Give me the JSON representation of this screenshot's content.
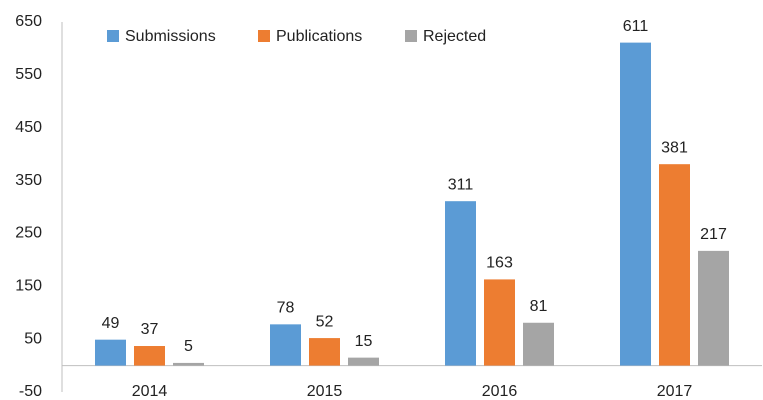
{
  "chart_data": {
    "type": "bar",
    "categories": [
      "2014",
      "2015",
      "2016",
      "2017"
    ],
    "series": [
      {
        "name": "Submissions",
        "color": "#5b9bd5",
        "values": [
          49,
          78,
          311,
          611
        ]
      },
      {
        "name": "Publications",
        "color": "#ed7d31",
        "values": [
          37,
          52,
          163,
          381
        ]
      },
      {
        "name": "Rejected",
        "color": "#a5a5a5",
        "values": [
          5,
          15,
          81,
          217
        ]
      }
    ],
    "ylim": [
      -50,
      650
    ],
    "yticks": [
      -50,
      50,
      150,
      250,
      350,
      450,
      550,
      650
    ],
    "grid": false,
    "legend": "top"
  }
}
